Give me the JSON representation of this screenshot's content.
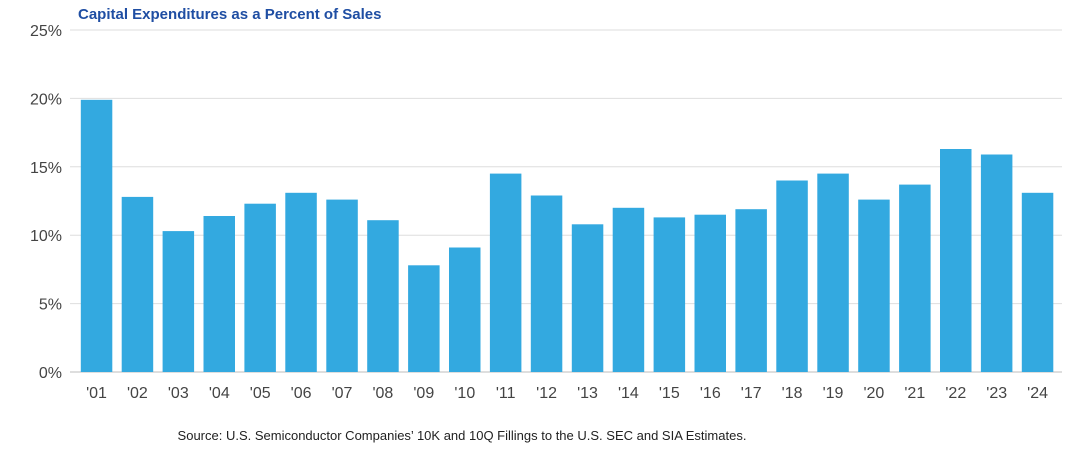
{
  "chart_data": {
    "type": "bar",
    "title": "Capital Expenditures as a Percent of Sales",
    "categories": [
      "'01",
      "'02",
      "'03",
      "'04",
      "'05",
      "'06",
      "'07",
      "'08",
      "'09",
      "'10",
      "'11",
      "'12",
      "'13",
      "'14",
      "'15",
      "'16",
      "'17",
      "'18",
      "'19",
      "'20",
      "'21",
      "'22",
      "'23",
      "'24"
    ],
    "values": [
      19.9,
      12.8,
      10.3,
      11.4,
      12.3,
      13.1,
      12.6,
      11.1,
      7.8,
      9.1,
      14.5,
      12.9,
      10.8,
      12.0,
      11.3,
      11.5,
      11.9,
      14.0,
      14.5,
      12.6,
      13.7,
      16.3,
      15.9,
      13.1
    ],
    "yticks": [
      "0%",
      "5%",
      "10%",
      "15%",
      "20%",
      "25%"
    ],
    "ylim": [
      0,
      25
    ],
    "grid": true,
    "bar_color": "#33a9e0",
    "source": "Source: U.S. Semiconductor Companies’ 10K and 10Q Fillings to the U.S. SEC and SIA Estimates."
  }
}
